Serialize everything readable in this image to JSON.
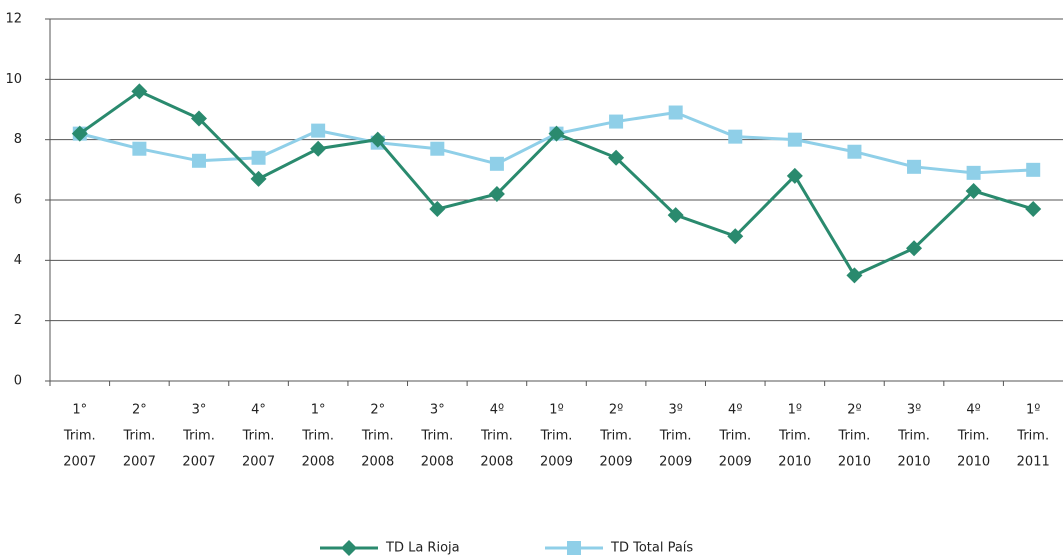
{
  "chart_data": {
    "type": "line",
    "categories": [
      [
        "1°",
        "Trim.",
        "2007"
      ],
      [
        "2°",
        "Trim.",
        "2007"
      ],
      [
        "3°",
        "Trim.",
        "2007"
      ],
      [
        "4°",
        "Trim.",
        "2007"
      ],
      [
        "1°",
        "Trim.",
        "2008"
      ],
      [
        "2°",
        "Trim.",
        "2008"
      ],
      [
        "3°",
        "Trim.",
        "2008"
      ],
      [
        "4º",
        "Trim.",
        "2008"
      ],
      [
        "1º",
        "Trim.",
        "2009"
      ],
      [
        "2º",
        "Trim.",
        "2009"
      ],
      [
        "3º",
        "Trim.",
        "2009"
      ],
      [
        "4º",
        "Trim.",
        "2009"
      ],
      [
        "1º",
        "Trim.",
        "2010"
      ],
      [
        "2º",
        "Trim.",
        "2010"
      ],
      [
        "3º",
        "Trim.",
        "2010"
      ],
      [
        "4º",
        "Trim.",
        "2010"
      ],
      [
        "1º",
        "Trim.",
        "2011"
      ]
    ],
    "series": [
      {
        "name": "TD La Rioja",
        "color": "#2a8a6e",
        "marker": "diamond",
        "values": [
          8.2,
          9.6,
          8.7,
          6.7,
          7.7,
          8.0,
          5.7,
          6.2,
          8.2,
          7.4,
          5.5,
          4.8,
          6.8,
          3.5,
          4.4,
          6.3,
          5.7
        ]
      },
      {
        "name": "TD Total País",
        "color": "#8fcfe8",
        "marker": "square",
        "values": [
          8.2,
          7.7,
          7.3,
          7.4,
          8.3,
          7.9,
          7.7,
          7.2,
          8.2,
          8.6,
          8.9,
          8.1,
          8.0,
          7.6,
          7.1,
          6.9,
          7.0
        ]
      }
    ],
    "ylim": [
      0,
      12
    ],
    "yticks": [
      0,
      2,
      4,
      6,
      8,
      10,
      12
    ],
    "grid": true,
    "legend": "bottom"
  }
}
